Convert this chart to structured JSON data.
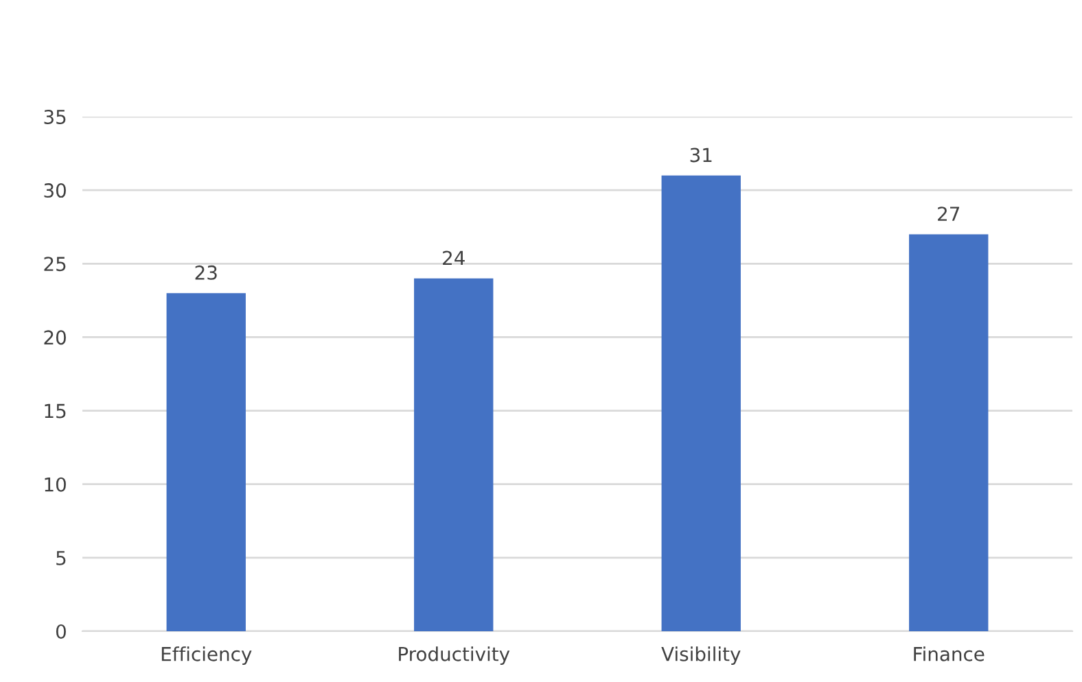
{
  "chart_data": {
    "type": "bar",
    "categories": [
      "Efficiency",
      "Productivity",
      "Visibility",
      "Finance"
    ],
    "values": [
      23,
      24,
      31,
      27
    ],
    "color": "#4472c4",
    "ylim": [
      0,
      35
    ],
    "yticks": [
      0,
      5,
      10,
      15,
      20,
      25,
      30,
      35
    ],
    "grid": "y",
    "data_labels": true,
    "legend": false
  }
}
